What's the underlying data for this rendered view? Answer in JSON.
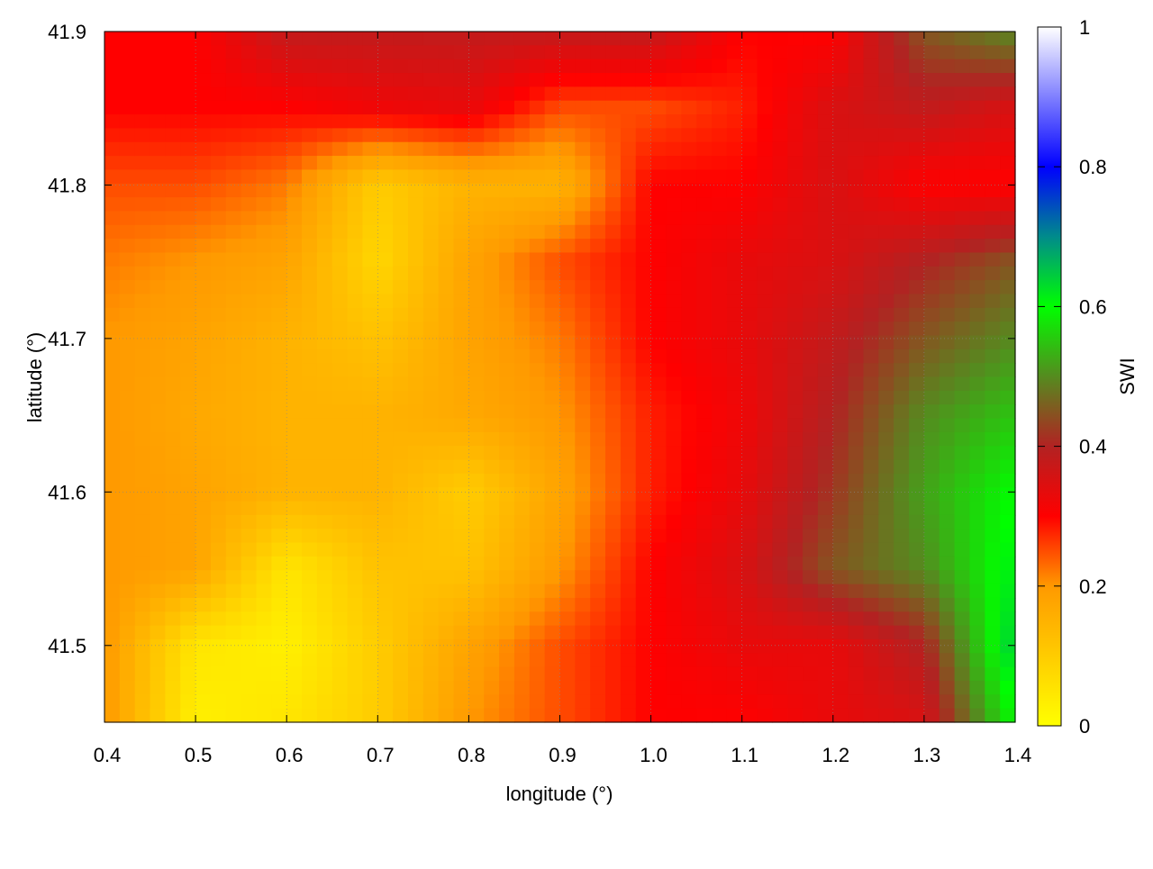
{
  "chart_data": {
    "type": "heatmap",
    "title": "",
    "xlabel": "longitude (°)",
    "ylabel": "latitude (°)",
    "colorbar_label": "SWI",
    "xlim": [
      0.4,
      1.4
    ],
    "ylim": [
      41.45,
      41.9
    ],
    "zlim": [
      0,
      1
    ],
    "grid": true,
    "x_ticks": [
      "0.4",
      "0.5",
      "0.6",
      "0.7",
      "0.8",
      "0.9",
      "1.0",
      "1.1",
      "1.2",
      "1.3",
      "1.4"
    ],
    "y_ticks": [
      "41.5",
      "41.6",
      "41.7",
      "41.8",
      "41.9"
    ],
    "colorbar_ticks": [
      "0",
      "0.2",
      "0.4",
      "0.6",
      "0.8",
      "1"
    ],
    "colormap": [
      {
        "v": 0.0,
        "color": "#ffff00"
      },
      {
        "v": 0.2,
        "color": "#ff9900"
      },
      {
        "v": 0.3,
        "color": "#ff0000"
      },
      {
        "v": 0.4,
        "color": "#b22222"
      },
      {
        "v": 0.5,
        "color": "#558b1f"
      },
      {
        "v": 0.6,
        "color": "#00ff00"
      },
      {
        "v": 0.7,
        "color": "#008b8b"
      },
      {
        "v": 0.8,
        "color": "#0000ff"
      },
      {
        "v": 1.0,
        "color": "#ffffff"
      }
    ],
    "lon": [
      0.4,
      0.5,
      0.6,
      0.7,
      0.8,
      0.9,
      1.0,
      1.1,
      1.2,
      1.3,
      1.4
    ],
    "lat": [
      41.9,
      41.85,
      41.8,
      41.75,
      41.7,
      41.65,
      41.6,
      41.55,
      41.5,
      41.45
    ],
    "values": [
      [
        0.3,
        0.3,
        0.38,
        0.38,
        0.38,
        0.38,
        0.38,
        0.3,
        0.3,
        0.45,
        0.5
      ],
      [
        0.3,
        0.3,
        0.3,
        0.32,
        0.33,
        0.25,
        0.25,
        0.28,
        0.35,
        0.38,
        0.35
      ],
      [
        0.25,
        0.25,
        0.22,
        0.1,
        0.15,
        0.15,
        0.3,
        0.3,
        0.35,
        0.3,
        0.3
      ],
      [
        0.22,
        0.2,
        0.18,
        0.08,
        0.18,
        0.25,
        0.3,
        0.33,
        0.35,
        0.4,
        0.45
      ],
      [
        0.2,
        0.18,
        0.15,
        0.12,
        0.18,
        0.22,
        0.3,
        0.33,
        0.38,
        0.45,
        0.5
      ],
      [
        0.2,
        0.17,
        0.15,
        0.15,
        0.17,
        0.2,
        0.28,
        0.32,
        0.4,
        0.5,
        0.55
      ],
      [
        0.2,
        0.18,
        0.15,
        0.15,
        0.1,
        0.18,
        0.28,
        0.33,
        0.42,
        0.52,
        0.6
      ],
      [
        0.2,
        0.18,
        0.05,
        0.12,
        0.12,
        0.2,
        0.3,
        0.35,
        0.45,
        0.5,
        0.62
      ],
      [
        0.2,
        0.05,
        0.03,
        0.1,
        0.18,
        0.25,
        0.3,
        0.33,
        0.33,
        0.4,
        0.65
      ],
      [
        0.2,
        0.03,
        0.05,
        0.1,
        0.2,
        0.25,
        0.3,
        0.3,
        0.33,
        0.35,
        0.6
      ]
    ]
  }
}
